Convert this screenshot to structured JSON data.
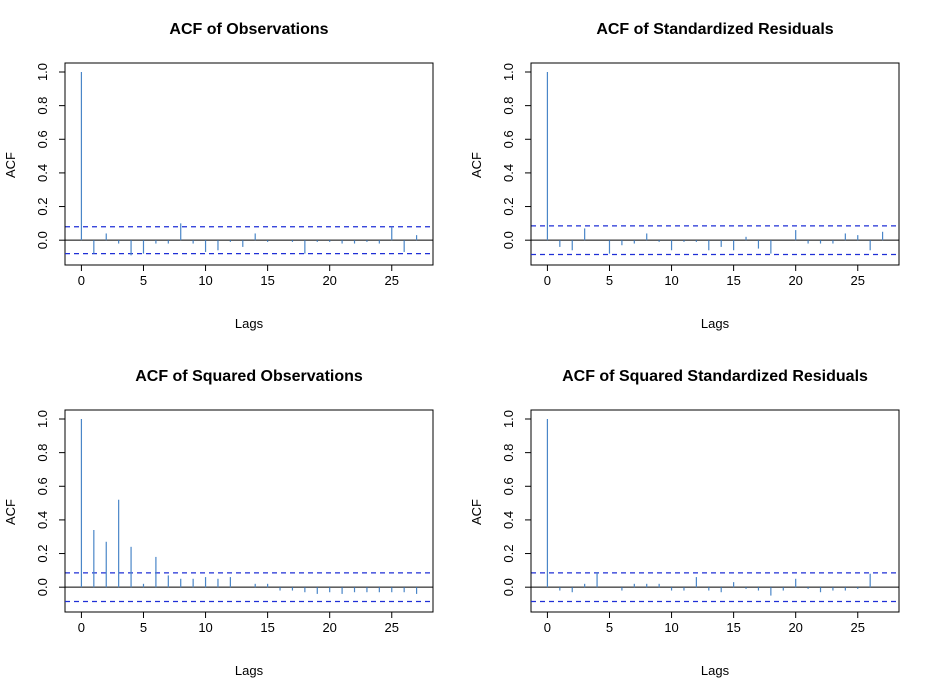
{
  "chart_data": [
    {
      "type": "bar",
      "title": "ACF of Observations",
      "xlabel": "Lags",
      "ylabel": "ACF",
      "xlim": [
        -1,
        28
      ],
      "ylim": [
        -0.1,
        1.0
      ],
      "xticks": [
        "0",
        "5",
        "10",
        "15",
        "20",
        "25"
      ],
      "yticks": [
        "0.0",
        "0.2",
        "0.4",
        "0.6",
        "0.8",
        "1.0"
      ],
      "ci": 0.08,
      "lags": [
        0,
        1,
        2,
        3,
        4,
        5,
        6,
        7,
        8,
        9,
        10,
        11,
        12,
        13,
        14,
        15,
        16,
        17,
        18,
        19,
        20,
        21,
        22,
        23,
        24,
        25,
        26,
        27
      ],
      "values": [
        1.0,
        -0.08,
        0.04,
        -0.02,
        -0.09,
        -0.08,
        -0.02,
        -0.02,
        0.1,
        -0.02,
        -0.07,
        -0.06,
        -0.01,
        -0.04,
        0.04,
        -0.01,
        0.0,
        -0.01,
        -0.08,
        -0.01,
        -0.01,
        -0.02,
        -0.02,
        -0.01,
        -0.02,
        0.08,
        -0.07,
        0.03
      ]
    },
    {
      "type": "bar",
      "title": "ACF of Standardized Residuals",
      "xlabel": "Lags",
      "ylabel": "ACF",
      "xlim": [
        -1,
        28
      ],
      "ylim": [
        -0.1,
        1.0
      ],
      "xticks": [
        "0",
        "5",
        "10",
        "15",
        "20",
        "25"
      ],
      "yticks": [
        "0.0",
        "0.2",
        "0.4",
        "0.6",
        "0.8",
        "1.0"
      ],
      "ci": 0.085,
      "lags": [
        0,
        1,
        2,
        3,
        4,
        5,
        6,
        7,
        8,
        9,
        10,
        11,
        12,
        13,
        14,
        15,
        16,
        17,
        18,
        19,
        20,
        21,
        22,
        23,
        24,
        25,
        26,
        27
      ],
      "values": [
        1.0,
        -0.04,
        -0.06,
        0.07,
        0.0,
        -0.08,
        -0.03,
        -0.02,
        0.04,
        -0.01,
        -0.06,
        -0.01,
        -0.01,
        -0.06,
        -0.04,
        -0.06,
        0.02,
        -0.05,
        -0.08,
        0.0,
        0.06,
        -0.02,
        -0.02,
        -0.02,
        0.04,
        0.03,
        -0.06,
        0.05
      ]
    },
    {
      "type": "bar",
      "title": "ACF of Squared Observations",
      "xlabel": "Lags",
      "ylabel": "ACF",
      "xlim": [
        -1,
        28
      ],
      "ylim": [
        -0.1,
        1.0
      ],
      "xticks": [
        "0",
        "5",
        "10",
        "15",
        "20",
        "25"
      ],
      "yticks": [
        "0.0",
        "0.2",
        "0.4",
        "0.6",
        "0.8",
        "1.0"
      ],
      "ci": 0.085,
      "lags": [
        0,
        1,
        2,
        3,
        4,
        5,
        6,
        7,
        8,
        9,
        10,
        11,
        12,
        13,
        14,
        15,
        16,
        17,
        18,
        19,
        20,
        21,
        22,
        23,
        24,
        25,
        26,
        27
      ],
      "values": [
        1.0,
        0.34,
        0.27,
        0.52,
        0.24,
        0.02,
        0.18,
        0.07,
        0.05,
        0.05,
        0.06,
        0.05,
        0.06,
        0.0,
        0.02,
        0.02,
        -0.02,
        -0.02,
        -0.03,
        -0.04,
        -0.03,
        -0.04,
        -0.03,
        -0.03,
        -0.03,
        -0.03,
        -0.03,
        -0.04
      ]
    },
    {
      "type": "bar",
      "title": "ACF of Squared Standardized Residuals",
      "xlabel": "Lags",
      "ylabel": "ACF",
      "xlim": [
        -1,
        28
      ],
      "ylim": [
        -0.1,
        1.0
      ],
      "xticks": [
        "0",
        "5",
        "10",
        "15",
        "20",
        "25"
      ],
      "yticks": [
        "0.0",
        "0.2",
        "0.4",
        "0.6",
        "0.8",
        "1.0"
      ],
      "ci": 0.085,
      "lags": [
        0,
        1,
        2,
        3,
        4,
        5,
        6,
        7,
        8,
        9,
        10,
        11,
        12,
        13,
        14,
        15,
        16,
        17,
        18,
        19,
        20,
        21,
        22,
        23,
        24,
        25,
        26,
        27
      ],
      "values": [
        1.0,
        -0.02,
        -0.03,
        0.02,
        0.09,
        0.0,
        -0.02,
        0.02,
        0.02,
        0.02,
        -0.02,
        -0.02,
        0.06,
        -0.02,
        -0.03,
        0.03,
        -0.01,
        -0.02,
        -0.05,
        -0.02,
        0.05,
        -0.01,
        -0.03,
        -0.02,
        -0.02,
        -0.01,
        0.08,
        0.0
      ]
    }
  ],
  "colors": {
    "spike": "#4a86c8",
    "ci_line": "#1f2fd6",
    "axis": "#000000",
    "background": "#ffffff"
  }
}
